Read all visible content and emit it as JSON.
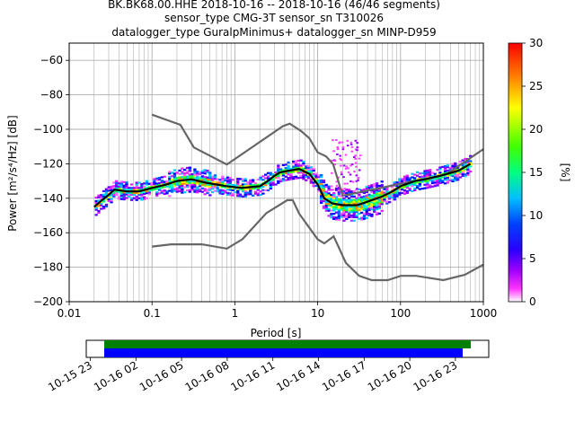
{
  "title": {
    "line1": "BK.BK68.00.HHE   2018-10-16 -- 2018-10-16  (46/46 segments)",
    "line2": "sensor_type CMG-3T sensor_sn T310026",
    "line3": "datalogger_type GuralpMinimus+ datalogger_sn MINP-D959"
  },
  "colors": {
    "median": "#000000",
    "noise_models": "#666666",
    "coverage_data": "#008000",
    "coverage_gaps": "#0000ff",
    "grid": "#b0b0b0"
  },
  "chart_data": [
    {
      "type": "heatmap",
      "title": "",
      "xlabel": "Period [s]",
      "ylabel": "Power [m²/s⁴/Hz] [dB]",
      "xscale": "log",
      "xlim": [
        0.01,
        1000
      ],
      "ylim": [
        -200,
        -50
      ],
      "grid": true,
      "x_ticks": [
        {
          "value": 0.01,
          "label": "0.01"
        },
        {
          "value": 0.1,
          "label": "0.1"
        },
        {
          "value": 1,
          "label": "1"
        },
        {
          "value": 10,
          "label": "10"
        },
        {
          "value": 100,
          "label": "100"
        },
        {
          "value": 1000,
          "label": "1000"
        }
      ],
      "y_ticks": [
        {
          "value": -60,
          "label": "−60"
        },
        {
          "value": -80,
          "label": "−80"
        },
        {
          "value": -100,
          "label": "−100"
        },
        {
          "value": -120,
          "label": "−120"
        },
        {
          "value": -140,
          "label": "−140"
        },
        {
          "value": -160,
          "label": "−160"
        },
        {
          "value": -180,
          "label": "−180"
        },
        {
          "value": -200,
          "label": "−200"
        }
      ],
      "colorbar": {
        "label": "[%]",
        "range": [
          0,
          30
        ],
        "ticks": [
          "0",
          "5",
          "10",
          "15",
          "20",
          "25",
          "30"
        ]
      },
      "series": [
        {
          "values": [
            [
              0.02,
              -145
            ],
            [
              0.025,
              -141
            ],
            [
              0.03,
              -138
            ],
            [
              0.035,
              -135
            ],
            [
              0.05,
              -136
            ],
            [
              0.07,
              -136
            ],
            [
              0.1,
              -134
            ],
            [
              0.15,
              -132
            ],
            [
              0.2,
              -130
            ],
            [
              0.3,
              -129
            ],
            [
              0.45,
              -131
            ],
            [
              0.6,
              -132
            ],
            [
              0.8,
              -133
            ],
            [
              1.2,
              -134
            ],
            [
              2,
              -133
            ],
            [
              2.5,
              -130
            ],
            [
              3,
              -127
            ],
            [
              3.5,
              -125
            ],
            [
              4.5,
              -124
            ],
            [
              6,
              -123
            ],
            [
              8,
              -126
            ],
            [
              10,
              -132
            ],
            [
              12,
              -140
            ],
            [
              15,
              -143
            ],
            [
              20,
              -144
            ],
            [
              30,
              -144
            ],
            [
              40,
              -142
            ],
            [
              60,
              -139
            ],
            [
              80,
              -136
            ],
            [
              100,
              -133
            ],
            [
              150,
              -130
            ],
            [
              200,
              -129
            ],
            [
              300,
              -127
            ],
            [
              500,
              -124
            ],
            [
              700,
              -120
            ]
          ]
        },
        {
          "values": [
            [
              0.1,
              -91.5
            ],
            [
              0.22,
              -97.4
            ],
            [
              0.32,
              -110.5
            ],
            [
              0.8,
              -120.4
            ],
            [
              3.8,
              -98.2
            ],
            [
              4.6,
              -96.7
            ],
            [
              6.3,
              -101
            ],
            [
              7.9,
              -105.1
            ],
            [
              10,
              -113.4
            ],
            [
              12.6,
              -115.7
            ],
            [
              15.4,
              -120.3
            ],
            [
              20,
              -138.5
            ],
            [
              354.8,
              -126.2
            ],
            [
              1000,
              -111.5
            ]
          ]
        },
        {
          "values": [
            [
              0.1,
              -168
            ],
            [
              0.17,
              -166.7
            ],
            [
              0.4,
              -166.7
            ],
            [
              0.8,
              -169.2
            ],
            [
              1.24,
              -163.7
            ],
            [
              2.4,
              -148.6
            ],
            [
              4.3,
              -141.1
            ],
            [
              5,
              -141.1
            ],
            [
              6,
              -149
            ],
            [
              10,
              -163.8
            ],
            [
              12,
              -166.2
            ],
            [
              15.6,
              -162.1
            ],
            [
              21.9,
              -177.5
            ],
            [
              31.6,
              -185
            ],
            [
              45,
              -187.5
            ],
            [
              70,
              -187.5
            ],
            [
              101,
              -185
            ],
            [
              154,
              -185
            ],
            [
              328,
              -187.5
            ],
            [
              600,
              -184.4
            ],
            [
              1000,
              -178.5
            ]
          ]
        }
      ]
    },
    {
      "type": "timeline",
      "x_tick_labels": [
        "10-15 23",
        "10-16 02",
        "10-16 05",
        "10-16 08",
        "10-16 11",
        "10-16 14",
        "10-16 17",
        "10-16 20",
        "10-16 23"
      ],
      "xlim": [
        "2018-10-15 23:00",
        "2018-10-17 00:30"
      ],
      "data_coverage": [
        "2018-10-16 00:00",
        "2018-10-17 00:00"
      ],
      "gap_free_segments": [
        "2018-10-16 00:00",
        "2018-10-16 23:30"
      ]
    }
  ]
}
